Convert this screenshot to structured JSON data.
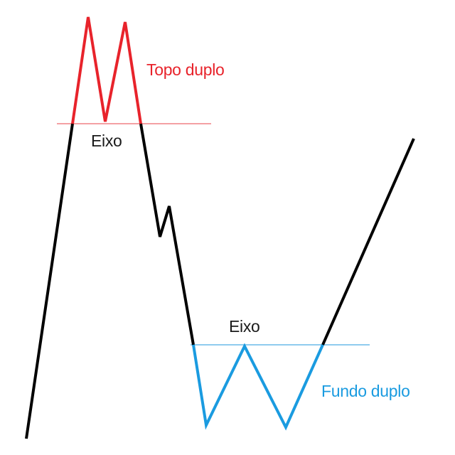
{
  "labels": {
    "double_top": "Topo duplo",
    "double_top_neckline": "Eixo",
    "double_bottom_neckline": "Eixo",
    "double_bottom": "Fundo duplo"
  },
  "colors": {
    "background": "#ffffff",
    "price_line": "#000000",
    "double_top": "#e8232b",
    "double_top_neckline": "#f4a0a3",
    "double_bottom": "#1a9be0",
    "double_bottom_neckline": "#8fcbee",
    "axis_text": "#1a1a1a"
  }
}
